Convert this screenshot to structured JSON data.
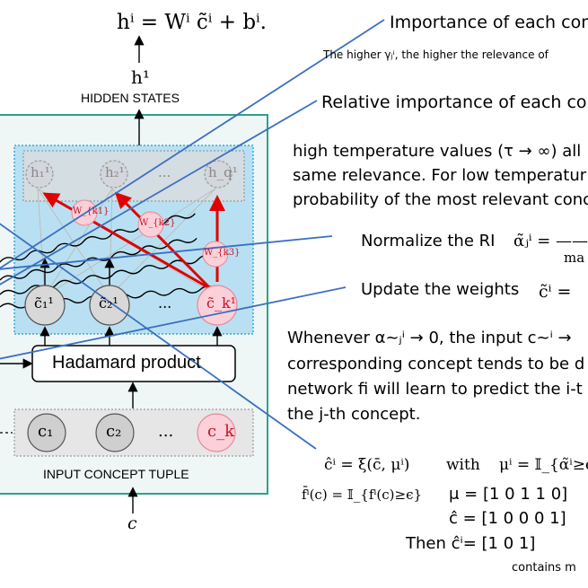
{
  "top_formula": "hⁱ = Wⁱ c̃ⁱ + bⁱ.",
  "h1_label": "h¹",
  "hidden_states_label": "HIDDEN STATES",
  "hidden_nodes": [
    "h₁¹",
    "h₂¹",
    "...",
    "h_q¹"
  ],
  "weight_labels": [
    "W_{k1}",
    "W_{k2}",
    "W_{k3}"
  ],
  "concept_nodes": [
    "c̃₁¹",
    "c̃₂¹",
    "...",
    "c̃_k¹"
  ],
  "hadamard_label": "Hadamard product",
  "input_nodes": [
    "c₁",
    "c₂",
    "...",
    "c_k"
  ],
  "input_tuple_label": "INPUT CONCEPT TUPLE",
  "c_label": "c",
  "annotations": {
    "importance_title": "Importance of each conc",
    "importance_note": "The higher γⱼⁱ, the higher the relevance of",
    "relative_title": "Relative importance of each conc",
    "temperature_line1": "high temperature values (τ → ∞) all",
    "temperature_line2": "same relevance. For low temperatur",
    "temperature_line3": "probability of the most relevant conc",
    "normalize_label": "Normalize the RI",
    "normalize_formula": "α̃ⱼⁱ = ———",
    "normalize_denominator": "ma",
    "update_label": "Update the weights",
    "update_formula": "c̃ⁱ =",
    "whenever_line1": "Whenever α~ⱼⁱ → 0, the input c~ⁱ →",
    "whenever_line2": "corresponding concept tends to be d",
    "whenever_line3": "network fi will learn to predict the i-t",
    "whenever_line4": "the j-th concept.",
    "xi_formula": "ĉⁱ = ξ(c̄, μⁱ)",
    "with_word": "with",
    "mu_formula": "μⁱ = 𝕀_{α̃ⁱ≥ϵ",
    "f_formula": "f̄ⁱ(c) = 𝕀_{fⁱ(c)≥ϵ}",
    "mu_vector": "μ = [1 0 1 1 0]",
    "chat_vector": "ĉ =  [1 0  0 0 1]",
    "then_vector": "Then ĉⁱ=  [1    0 1]",
    "contains_note": "contains m"
  }
}
